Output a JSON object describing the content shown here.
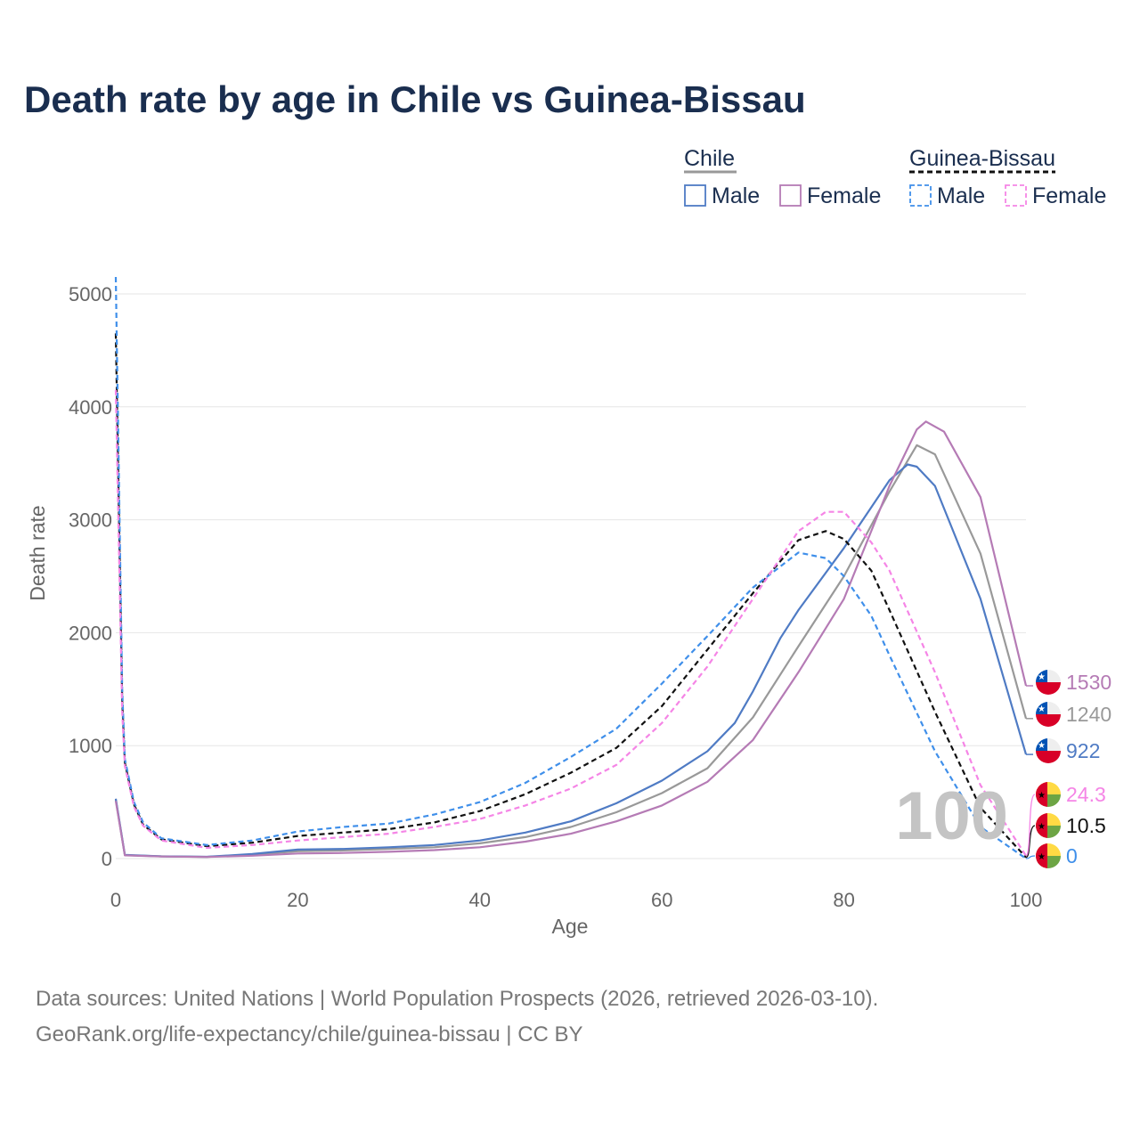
{
  "title": "Death rate by age in Chile vs Guinea-Bissau",
  "legend": {
    "groups": [
      {
        "name": "Chile",
        "style": "solid",
        "entries": [
          {
            "label": "Male",
            "color": "#4f7bc4"
          },
          {
            "label": "Female",
            "color": "#b57bb5"
          }
        ]
      },
      {
        "name": "Guinea-Bissau",
        "style": "dashed",
        "entries": [
          {
            "label": "Male",
            "color": "#3f8fea"
          },
          {
            "label": "Female",
            "color": "#f585e6"
          }
        ]
      }
    ]
  },
  "watermark": "100",
  "footer": {
    "line1": "Data sources: United Nations | World Population Prospects (2026, retrieved 2026-03-10).",
    "line2": "GeoRank.org/life-expectancy/chile/guinea-bissau | CC BY"
  },
  "chart_data": {
    "type": "line",
    "title": "Death rate by age in Chile vs Guinea-Bissau",
    "xlabel": "Age",
    "ylabel": "Death rate",
    "xlim": [
      0,
      100
    ],
    "ylim": [
      0,
      5150
    ],
    "xticks": [
      0,
      20,
      40,
      60,
      80,
      100
    ],
    "yticks": [
      0,
      1000,
      2000,
      3000,
      4000,
      5000
    ],
    "grid": true,
    "series": [
      {
        "name": "Chile Total",
        "country": "Chile",
        "color": "#999999",
        "dash": false,
        "end_label": "1240",
        "points": [
          [
            0,
            520
          ],
          [
            1,
            30
          ],
          [
            5,
            20
          ],
          [
            10,
            15
          ],
          [
            15,
            35
          ],
          [
            20,
            65
          ],
          [
            25,
            72
          ],
          [
            30,
            85
          ],
          [
            35,
            100
          ],
          [
            40,
            135
          ],
          [
            45,
            190
          ],
          [
            50,
            280
          ],
          [
            55,
            410
          ],
          [
            60,
            580
          ],
          [
            65,
            800
          ],
          [
            70,
            1250
          ],
          [
            75,
            1880
          ],
          [
            80,
            2500
          ],
          [
            85,
            3250
          ],
          [
            88,
            3660
          ],
          [
            90,
            3580
          ],
          [
            95,
            2700
          ],
          [
            100,
            1240
          ]
        ]
      },
      {
        "name": "Chile Male",
        "country": "Chile",
        "color": "#4f7bc4",
        "dash": false,
        "end_label": "922",
        "points": [
          [
            0,
            530
          ],
          [
            1,
            32
          ],
          [
            5,
            20
          ],
          [
            10,
            16
          ],
          [
            15,
            40
          ],
          [
            20,
            80
          ],
          [
            25,
            85
          ],
          [
            30,
            100
          ],
          [
            35,
            120
          ],
          [
            40,
            160
          ],
          [
            45,
            230
          ],
          [
            50,
            330
          ],
          [
            55,
            490
          ],
          [
            60,
            690
          ],
          [
            65,
            950
          ],
          [
            68,
            1200
          ],
          [
            70,
            1480
          ],
          [
            73,
            1950
          ],
          [
            75,
            2200
          ],
          [
            80,
            2750
          ],
          [
            85,
            3350
          ],
          [
            87,
            3490
          ],
          [
            88,
            3470
          ],
          [
            90,
            3300
          ],
          [
            95,
            2300
          ],
          [
            100,
            922
          ]
        ]
      },
      {
        "name": "Chile Female",
        "country": "Chile",
        "color": "#b57bb5",
        "dash": false,
        "end_label": "1530",
        "points": [
          [
            0,
            510
          ],
          [
            1,
            28
          ],
          [
            5,
            18
          ],
          [
            10,
            14
          ],
          [
            15,
            25
          ],
          [
            20,
            45
          ],
          [
            25,
            50
          ],
          [
            30,
            60
          ],
          [
            35,
            75
          ],
          [
            40,
            100
          ],
          [
            45,
            150
          ],
          [
            50,
            220
          ],
          [
            55,
            330
          ],
          [
            60,
            470
          ],
          [
            65,
            680
          ],
          [
            70,
            1050
          ],
          [
            75,
            1650
          ],
          [
            80,
            2300
          ],
          [
            85,
            3300
          ],
          [
            88,
            3800
          ],
          [
            89,
            3870
          ],
          [
            91,
            3780
          ],
          [
            95,
            3200
          ],
          [
            100,
            1530
          ]
        ]
      },
      {
        "name": "Guinea-Bissau Total",
        "country": "Guinea-Bissau",
        "color": "#111111",
        "dash": true,
        "end_label": "10.5",
        "points": [
          [
            0,
            4650
          ],
          [
            0.7,
            1400
          ],
          [
            1,
            850
          ],
          [
            2,
            480
          ],
          [
            3,
            300
          ],
          [
            5,
            170
          ],
          [
            10,
            110
          ],
          [
            15,
            140
          ],
          [
            20,
            200
          ],
          [
            25,
            230
          ],
          [
            30,
            260
          ],
          [
            35,
            320
          ],
          [
            40,
            420
          ],
          [
            45,
            570
          ],
          [
            50,
            760
          ],
          [
            55,
            980
          ],
          [
            60,
            1350
          ],
          [
            65,
            1850
          ],
          [
            70,
            2350
          ],
          [
            75,
            2820
          ],
          [
            78,
            2900
          ],
          [
            80,
            2830
          ],
          [
            83,
            2550
          ],
          [
            85,
            2200
          ],
          [
            90,
            1300
          ],
          [
            95,
            450
          ],
          [
            100,
            10.5
          ]
        ]
      },
      {
        "name": "Guinea-Bissau Male",
        "country": "Guinea-Bissau",
        "color": "#3f8fea",
        "dash": true,
        "end_label": "0",
        "points": [
          [
            0,
            5150
          ],
          [
            0.7,
            1500
          ],
          [
            1,
            880
          ],
          [
            2,
            500
          ],
          [
            3,
            320
          ],
          [
            5,
            180
          ],
          [
            10,
            120
          ],
          [
            15,
            160
          ],
          [
            20,
            240
          ],
          [
            25,
            280
          ],
          [
            30,
            310
          ],
          [
            35,
            390
          ],
          [
            40,
            500
          ],
          [
            45,
            670
          ],
          [
            50,
            900
          ],
          [
            55,
            1150
          ],
          [
            60,
            1550
          ],
          [
            65,
            1970
          ],
          [
            70,
            2400
          ],
          [
            75,
            2710
          ],
          [
            78,
            2660
          ],
          [
            80,
            2500
          ],
          [
            83,
            2150
          ],
          [
            85,
            1800
          ],
          [
            90,
            950
          ],
          [
            95,
            280
          ],
          [
            100,
            0
          ]
        ]
      },
      {
        "name": "Guinea-Bissau Female",
        "country": "Guinea-Bissau",
        "color": "#f585e6",
        "dash": true,
        "end_label": "24.3",
        "points": [
          [
            0,
            4150
          ],
          [
            0.7,
            1300
          ],
          [
            1,
            820
          ],
          [
            2,
            460
          ],
          [
            3,
            290
          ],
          [
            5,
            160
          ],
          [
            10,
            95
          ],
          [
            15,
            120
          ],
          [
            20,
            160
          ],
          [
            25,
            190
          ],
          [
            30,
            220
          ],
          [
            35,
            280
          ],
          [
            40,
            350
          ],
          [
            45,
            470
          ],
          [
            50,
            620
          ],
          [
            55,
            830
          ],
          [
            60,
            1200
          ],
          [
            65,
            1700
          ],
          [
            70,
            2300
          ],
          [
            75,
            2900
          ],
          [
            78,
            3070
          ],
          [
            80,
            3070
          ],
          [
            83,
            2800
          ],
          [
            85,
            2550
          ],
          [
            90,
            1650
          ],
          [
            95,
            650
          ],
          [
            100,
            24.3
          ]
        ]
      }
    ]
  }
}
